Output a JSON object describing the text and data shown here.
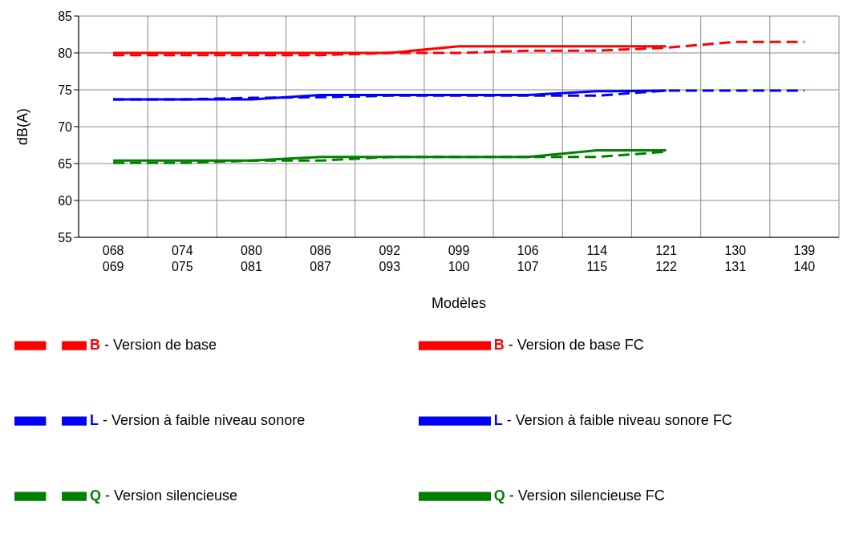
{
  "chart_data": {
    "type": "line",
    "xlabel": "Modèles",
    "ylabel": "dB(A)",
    "categories": [
      "068\n069",
      "074\n075",
      "080\n081",
      "086\n087",
      "092\n093",
      "099\n100",
      "106\n107",
      "114\n115",
      "121\n122",
      "130\n131",
      "139\n140"
    ],
    "ylim": [
      55,
      85
    ],
    "yticks": [
      55,
      60,
      65,
      70,
      75,
      80,
      85
    ],
    "grid": true,
    "legend": "bottom",
    "series": [
      {
        "name": "B - Version de base",
        "color": "#ff0000",
        "line_style": "dashed",
        "values": [
          79.7,
          79.7,
          79.7,
          79.7,
          80,
          80,
          80.3,
          80.3,
          80.7,
          81.5,
          81.5
        ]
      },
      {
        "name": "B - Version de base FC",
        "color": "#ff0000",
        "line_style": "solid",
        "values": [
          80,
          80,
          80,
          80,
          80,
          80.9,
          80.9,
          80.9,
          80.9,
          null,
          null
        ]
      },
      {
        "name": "L - Version à faible niveau sonore",
        "color": "#0000ff",
        "line_style": "dashed",
        "values": [
          73.7,
          73.7,
          73.9,
          74,
          74.2,
          74.2,
          74.2,
          74.2,
          74.9,
          74.9,
          74.9
        ]
      },
      {
        "name": "L - Version à faible niveau sonore FC",
        "color": "#0000ff",
        "line_style": "solid",
        "values": [
          73.7,
          73.7,
          73.7,
          74.3,
          74.3,
          74.3,
          74.3,
          74.8,
          74.9,
          null,
          null
        ]
      },
      {
        "name": "Q - Version silencieuse",
        "color": "#008000",
        "line_style": "dashed",
        "values": [
          65.1,
          65.1,
          65.4,
          65.4,
          65.9,
          65.9,
          65.9,
          65.9,
          66.6,
          null,
          null
        ]
      },
      {
        "name": "Q - Version silencieuse FC",
        "color": "#008000",
        "line_style": "solid",
        "values": [
          65.4,
          65.4,
          65.4,
          65.9,
          65.9,
          65.9,
          65.9,
          66.8,
          66.8,
          null,
          null
        ]
      }
    ]
  }
}
